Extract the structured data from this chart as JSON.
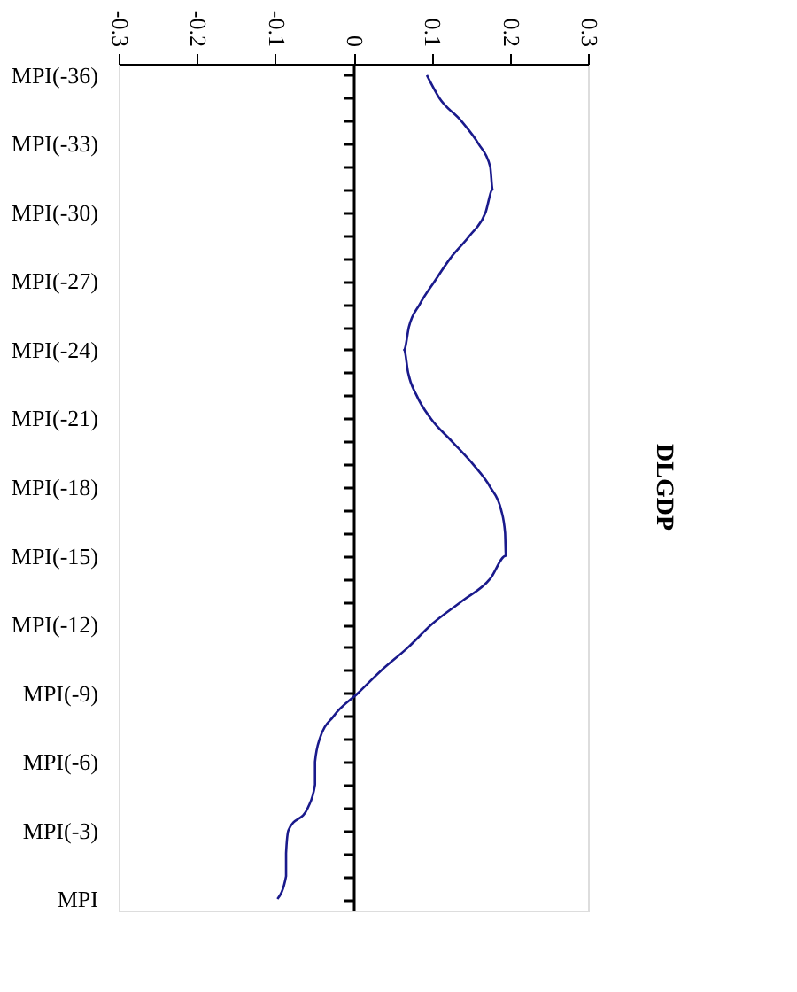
{
  "chart_data": {
    "type": "line",
    "title": "DLGDP",
    "orientation": "horizontal",
    "categories": [
      "MPI(-36)",
      null,
      null,
      "MPI(-33)",
      null,
      null,
      "MPI(-30)",
      null,
      null,
      "MPI(-27)",
      null,
      null,
      "MPI(-24)",
      null,
      null,
      "MPI(-21)",
      null,
      null,
      "MPI(-18)",
      null,
      null,
      "MPI(-15)",
      null,
      null,
      "MPI(-12)",
      null,
      null,
      "MPI(-9)",
      null,
      null,
      "MPI(-6)",
      null,
      null,
      "MPI(-3)",
      null,
      null,
      "MPI"
    ],
    "series": [
      {
        "color": "#1a1a8c",
        "values": [
          0.094,
          0.11,
          0.138,
          0.16,
          0.175,
          0.178,
          0.169,
          0.149,
          0.124,
          0.104,
          0.085,
          0.071,
          0.065,
          0.07,
          0.081,
          0.099,
          0.126,
          0.153,
          0.175,
          0.189,
          0.194,
          0.195,
          0.175,
          0.138,
          0.1,
          0.07,
          0.036,
          0.006,
          -0.025,
          -0.043,
          -0.049,
          -0.049,
          -0.058,
          -0.083,
          -0.086,
          -0.086,
          -0.097
        ]
      }
    ],
    "xlim": [
      -0.3,
      0.3
    ],
    "xticks": [
      -0.3,
      -0.2,
      -0.1,
      {
        "value": 0,
        "label": "0"
      },
      0.1,
      0.2,
      0.3
    ],
    "marker": "none",
    "line_style": "solid"
  }
}
